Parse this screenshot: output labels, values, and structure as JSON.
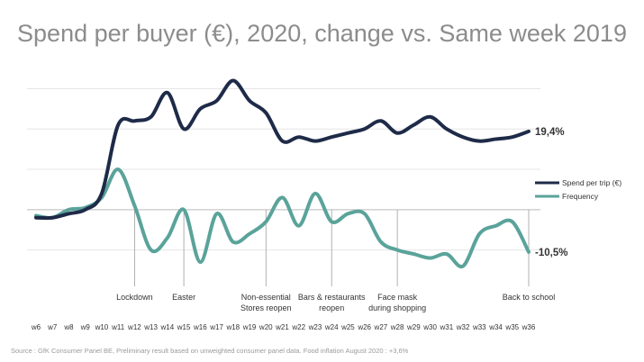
{
  "title": "Spend per buyer (€), 2020, change vs. Same week 2019",
  "source": "Source : GfK Consumer Panel BE, Preliminary result based on unweighted consumer panel data. Food inflation August 2020 : +3,6%",
  "colors": {
    "spend": "#1e2b48",
    "frequency": "#5aa39a",
    "grid": "#e6e6e6",
    "axis": "#b3b3b3",
    "text": "#333333",
    "muted": "#8c8c8c"
  },
  "chart_data": {
    "type": "line",
    "title": "Spend per buyer (€), 2020, change vs. Same week 2019",
    "categories": [
      "w6",
      "w7",
      "w8",
      "w9",
      "w10",
      "w11",
      "w12",
      "w13",
      "w14",
      "w15",
      "w16",
      "w17",
      "w18",
      "w19",
      "w20",
      "w21",
      "w22",
      "w23",
      "w24",
      "w25",
      "w26",
      "w27",
      "w28",
      "w29",
      "w30",
      "w31",
      "w32",
      "w33",
      "w34",
      "w35",
      "w36"
    ],
    "series": [
      {
        "name": "Spend per trip (€)",
        "color": "#1e2b48",
        "values": [
          -2,
          -2,
          -1,
          0,
          4,
          21,
          22,
          23,
          29,
          20,
          25,
          27,
          32,
          27,
          24,
          17,
          18,
          17,
          18,
          19,
          20,
          22,
          19,
          21,
          23,
          20,
          18,
          17,
          17.5,
          18,
          19.4
        ]
      },
      {
        "name": "Frequency",
        "color": "#5aa39a",
        "values": [
          -1.5,
          -2,
          0,
          0.5,
          3,
          10,
          1,
          -10,
          -7,
          0,
          -13,
          -1,
          -8,
          -6,
          -3,
          3,
          -4,
          4,
          -3,
          -1,
          -1,
          -8,
          -10,
          -11,
          -12,
          -11,
          -14,
          -6,
          -4,
          -3,
          -10.5
        ]
      }
    ],
    "ylim": [
      -15,
      33
    ],
    "grid": true,
    "legend_position": "right",
    "end_labels": [
      "19,4%",
      "-10,5%"
    ],
    "annotations": [
      {
        "week": "w12",
        "lines": [
          "Lockdown"
        ]
      },
      {
        "week": "w15",
        "lines": [
          "Easter"
        ]
      },
      {
        "week": "w20",
        "lines": [
          "Non-essential",
          "Stores reopen"
        ]
      },
      {
        "week": "w24",
        "lines": [
          "Bars & restaurants",
          "reopen"
        ]
      },
      {
        "week": "w28",
        "lines": [
          "Face mask",
          "during shopping"
        ]
      },
      {
        "week": "w36",
        "lines": [
          "Back to school"
        ]
      }
    ]
  }
}
